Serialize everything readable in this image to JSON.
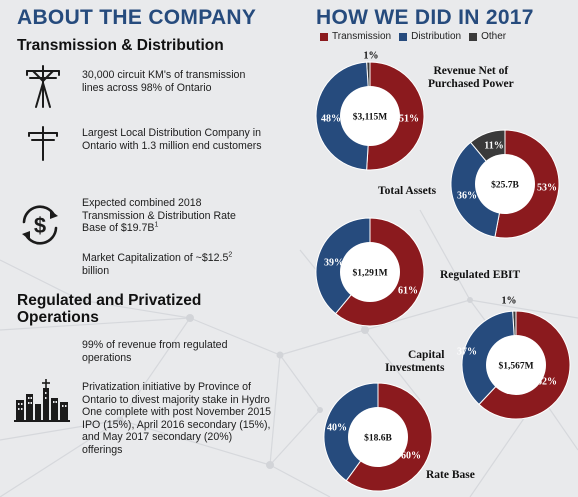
{
  "left": {
    "heading": "ABOUT THE COMPANY",
    "transmission_section": {
      "title": "Transmission & Distribution",
      "items": [
        {
          "icon": "transmission-tower-icon",
          "text": "30,000 circuit KM's of transmission lines across 98% of Ontario"
        },
        {
          "icon": "utility-pole-icon",
          "text": "Largest Local Distribution Company in Ontario with 1.3 million end customers"
        },
        {
          "icon": "dollar-cycle-icon",
          "text": "Expected combined 2018 Transmission & Distribution Rate Base of $19.7B",
          "footnote": "1"
        },
        {
          "text": "Market Capitalization of ~$12.5",
          "footnote": "2",
          "text_after": "billion"
        }
      ]
    },
    "regulated_section": {
      "title": "Regulated and Privatized Operations",
      "items": [
        {
          "text": "99% of revenue from regulated operations"
        },
        {
          "icon": "city-skyline-icon",
          "text": "Privatization initiative by Province of Ontario to divest majority stake in Hydro One complete with post November 2015 IPO (15%), April 2016 secondary (15%), and May 2017 secondary (20%) offerings"
        }
      ]
    }
  },
  "right": {
    "heading": "HOW WE DID IN 2017",
    "legend": [
      {
        "name": "Transmission",
        "color": "#8b1a1e"
      },
      {
        "name": "Distribution",
        "color": "#264b7d"
      },
      {
        "name": "Other",
        "color": "#3a3a3a"
      }
    ]
  },
  "chart_data": [
    {
      "type": "pie",
      "title": "Revenue Net of Purchased Power",
      "center_label": "$3,115M",
      "slices": [
        {
          "name": "Transmission",
          "value": 51,
          "label": "51%"
        },
        {
          "name": "Distribution",
          "value": 48,
          "label": "48%"
        },
        {
          "name": "Other",
          "value": 1,
          "label": "1%"
        }
      ]
    },
    {
      "type": "pie",
      "title": "Total Assets",
      "center_label": "$25.7B",
      "slices": [
        {
          "name": "Transmission",
          "value": 53,
          "label": "53%"
        },
        {
          "name": "Distribution",
          "value": 36,
          "label": "36%"
        },
        {
          "name": "Other",
          "value": 11,
          "label": "11%"
        }
      ]
    },
    {
      "type": "pie",
      "title": "Regulated EBIT",
      "center_label": "$1,291M",
      "slices": [
        {
          "name": "Transmission",
          "value": 61,
          "label": "61%"
        },
        {
          "name": "Distribution",
          "value": 39,
          "label": "39%"
        }
      ]
    },
    {
      "type": "pie",
      "title": "Capital Investments",
      "center_label": "$1,567M",
      "slices": [
        {
          "name": "Transmission",
          "value": 62,
          "label": "62%"
        },
        {
          "name": "Distribution",
          "value": 37,
          "label": "37%"
        },
        {
          "name": "Other",
          "value": 1,
          "label": "1%"
        }
      ]
    },
    {
      "type": "pie",
      "title": "Rate Base",
      "center_label": "$18.6B",
      "slices": [
        {
          "name": "Transmission",
          "value": 60,
          "label": "60%"
        },
        {
          "name": "Distribution",
          "value": 40,
          "label": "40%"
        }
      ]
    }
  ]
}
